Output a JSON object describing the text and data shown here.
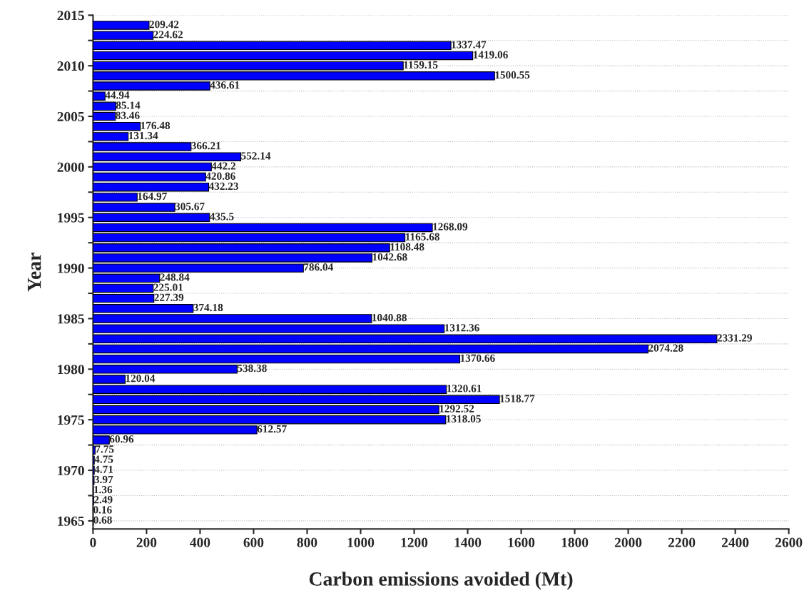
{
  "chart_data": {
    "type": "bar",
    "orientation": "horizontal",
    "xlabel": "Carbon emissions avoided (Mt)",
    "ylabel": "Year",
    "x": [
      1965,
      1966,
      1967,
      1968,
      1969,
      1970,
      1971,
      1972,
      1973,
      1974,
      1975,
      1976,
      1977,
      1978,
      1979,
      1980,
      1981,
      1982,
      1983,
      1984,
      1985,
      1986,
      1987,
      1988,
      1989,
      1990,
      1991,
      1992,
      1993,
      1994,
      1995,
      1996,
      1997,
      1998,
      1999,
      2000,
      2001,
      2002,
      2003,
      2004,
      2005,
      2006,
      2007,
      2008,
      2009,
      2010,
      2011,
      2012,
      2013,
      2014
    ],
    "values": [
      0.68,
      0.16,
      2.49,
      1.36,
      3.97,
      4.71,
      4.75,
      7.75,
      60.96,
      612.57,
      1318.05,
      1292.52,
      1518.77,
      1320.61,
      120.04,
      538.38,
      1370.66,
      2074.28,
      2331.29,
      1312.36,
      1040.88,
      374.18,
      227.39,
      225.01,
      248.84,
      786.04,
      1042.68,
      1108.48,
      1165.68,
      1268.09,
      435.5,
      305.67,
      164.97,
      432.23,
      420.86,
      442.2,
      552.14,
      366.21,
      131.34,
      176.48,
      83.46,
      85.14,
      44.94,
      436.61,
      1500.55,
      1159.15,
      1419.06,
      1337.47,
      224.62,
      209.42
    ],
    "color": "#0000ff",
    "data_labels": true,
    "xlim": [
      0,
      2600
    ],
    "xticks": [
      0,
      200,
      400,
      600,
      800,
      1000,
      1200,
      1400,
      1600,
      1800,
      2000,
      2200,
      2400,
      2600
    ],
    "ylim": [
      1964.2,
      2015
    ],
    "yticks": [
      1965,
      {
        "value": 1967.5,
        "label": null
      },
      1970,
      {
        "value": 1972.5,
        "label": null
      },
      1975,
      {
        "value": 1977.5,
        "label": null
      },
      1980,
      {
        "value": 1982.5,
        "label": null
      },
      1985,
      {
        "value": 1987.5,
        "label": null
      },
      1990,
      {
        "value": 1992.5,
        "label": null
      },
      1995,
      {
        "value": 1997.5,
        "label": null
      },
      2000,
      {
        "value": 2002.5,
        "label": null
      },
      2005,
      {
        "value": 2007.5,
        "label": null
      },
      2010,
      {
        "value": 2012.5,
        "label": null
      },
      2015
    ],
    "grid": "y"
  }
}
